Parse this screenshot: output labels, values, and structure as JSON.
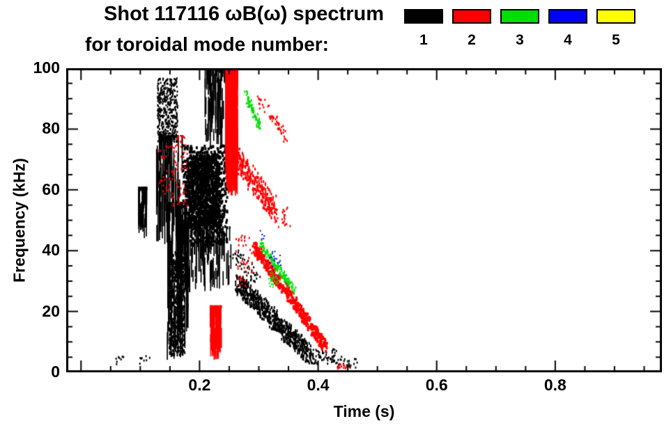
{
  "title": {
    "line1": "Shot 117116 ωB(ω) spectrum",
    "line2": "for toroidal mode number:"
  },
  "legend": {
    "modes": [
      {
        "label": "1",
        "color": "#000000"
      },
      {
        "label": "2",
        "color": "#ff0000"
      },
      {
        "label": "3",
        "color": "#00dd00"
      },
      {
        "label": "4",
        "color": "#0000ff"
      },
      {
        "label": "5",
        "color": "#ffff00"
      }
    ]
  },
  "chart_data": {
    "type": "scatter",
    "title": "Shot 117116 ωB(ω) spectrum for toroidal mode number 1-5",
    "xlabel": "Time (s)",
    "ylabel": "Frequency (kHz)",
    "xlim": [
      -0.025,
      0.98
    ],
    "ylim": [
      0,
      100
    ],
    "grid": false,
    "x_major_ticks": [
      0.0,
      0.2,
      0.4,
      0.6,
      0.8
    ],
    "x_tick_labels": [
      {
        "value": 0.2,
        "label": "0.2"
      },
      {
        "value": 0.4,
        "label": "0.4"
      },
      {
        "value": 0.6,
        "label": "0.6"
      },
      {
        "value": 0.8,
        "label": "0.8"
      }
    ],
    "x_minor_step": 0.05,
    "y_major_ticks": [
      0,
      20,
      40,
      60,
      80,
      100
    ],
    "y_tick_labels": [
      {
        "value": 0,
        "label": "0"
      },
      {
        "value": 20,
        "label": "20"
      },
      {
        "value": 40,
        "label": "40"
      },
      {
        "value": 60,
        "label": "60"
      },
      {
        "value": 80,
        "label": "80"
      },
      {
        "value": 100,
        "label": "100"
      }
    ],
    "y_minor_step": 5,
    "series": [
      {
        "name": "toroidal mode n=1",
        "mode": 1,
        "color": "#000000",
        "clusters": [
          {
            "shape": "blob",
            "t": [
              0.128,
              0.162
            ],
            "f": [
              76,
              97
            ],
            "n": 420,
            "dot": [
              2,
              3
            ]
          },
          {
            "shape": "vband",
            "t": [
              0.126,
              0.17
            ],
            "f": [
              40,
              78
            ],
            "n": 90
          },
          {
            "shape": "blob",
            "t": [
              0.148,
              0.174
            ],
            "f": [
              6,
              40
            ],
            "n": 520,
            "dot": [
              2,
              4
            ]
          },
          {
            "shape": "vband",
            "t": [
              0.143,
              0.18
            ],
            "f": [
              4,
              56
            ],
            "n": 90
          },
          {
            "shape": "vband",
            "t": [
              0.096,
              0.11
            ],
            "f": [
              44,
              61
            ],
            "n": 70
          },
          {
            "shape": "blob",
            "t": [
              0.17,
              0.245
            ],
            "f": [
              42,
              75
            ],
            "n": 700,
            "dot": [
              3,
              4
            ]
          },
          {
            "shape": "blob",
            "t": [
              0.178,
              0.232
            ],
            "f": [
              48,
              72
            ],
            "n": 800,
            "dot": [
              3,
              5
            ]
          },
          {
            "shape": "vband",
            "t": [
              0.172,
              0.252
            ],
            "f": [
              26,
              48
            ],
            "n": 120
          },
          {
            "shape": "vband",
            "t": [
              0.208,
              0.252
            ],
            "f": [
              74,
              100
            ],
            "n": 110
          },
          {
            "shape": "diag",
            "t": [
              0.262,
              0.385
            ],
            "f": [
              30,
              6
            ],
            "n": 700,
            "jt": 0.012,
            "jf": 6,
            "dot": [
              2,
              4
            ]
          },
          {
            "shape": "blob",
            "t": [
              0.38,
              0.43
            ],
            "f": [
              3,
              8
            ],
            "n": 70,
            "dot": [
              2,
              3
            ]
          },
          {
            "shape": "blob",
            "t": [
              0.43,
              0.465
            ],
            "f": [
              1.5,
              5.5
            ],
            "n": 25,
            "dot": [
              2,
              3
            ]
          },
          {
            "shape": "blob",
            "t": [
              0.058,
              0.075
            ],
            "f": [
              3,
              6
            ],
            "n": 8,
            "dot": [
              2,
              3
            ]
          },
          {
            "shape": "blob",
            "t": [
              0.098,
              0.115
            ],
            "f": [
              3,
              6
            ],
            "n": 8,
            "dot": [
              2,
              3
            ]
          },
          {
            "shape": "diag",
            "t": [
              0.255,
              0.3
            ],
            "f": [
              40,
              30
            ],
            "n": 50,
            "jt": 0.01,
            "jf": 5,
            "dot": [
              2,
              3
            ]
          }
        ]
      },
      {
        "name": "toroidal mode n=2",
        "mode": 2,
        "color": "#ff0000",
        "clusters": [
          {
            "shape": "vband",
            "t": [
              0.243,
              0.263
            ],
            "f": [
              58,
              100
            ],
            "n": 380
          },
          {
            "shape": "diag",
            "t": [
              0.258,
              0.325
            ],
            "f": [
              72,
              54
            ],
            "n": 300,
            "jt": 0.012,
            "jf": 8,
            "dot": [
              2,
              4
            ]
          },
          {
            "shape": "diag",
            "t": [
              0.29,
              0.41
            ],
            "f": [
              42,
              9
            ],
            "n": 420,
            "jt": 0.007,
            "jf": 4,
            "dot": [
              3,
              4
            ]
          },
          {
            "shape": "vband",
            "t": [
              0.217,
              0.236
            ],
            "f": [
              4,
              22
            ],
            "n": 130
          },
          {
            "shape": "blob",
            "t": [
              0.152,
              0.178
            ],
            "f": [
              55,
              78
            ],
            "n": 60,
            "dot": [
              2,
              3
            ]
          },
          {
            "shape": "blob",
            "t": [
              0.13,
              0.15
            ],
            "f": [
              58,
              75
            ],
            "n": 25,
            "dot": [
              2,
              3
            ]
          },
          {
            "shape": "diag",
            "t": [
              0.298,
              0.345
            ],
            "f": [
              90,
              78
            ],
            "n": 55,
            "jt": 0.008,
            "jf": 4,
            "dot": [
              2,
              3
            ]
          },
          {
            "shape": "blob",
            "t": [
              0.432,
              0.448
            ],
            "f": [
              1.5,
              4
            ],
            "n": 12,
            "dot": [
              2,
              3
            ]
          },
          {
            "shape": "blob",
            "t": [
              0.258,
              0.29
            ],
            "f": [
              28,
              46
            ],
            "n": 40,
            "dot": [
              2,
              3
            ]
          },
          {
            "shape": "blob",
            "t": [
              0.325,
              0.355
            ],
            "f": [
              48,
              55
            ],
            "n": 25,
            "dot": [
              2,
              3
            ]
          }
        ]
      },
      {
        "name": "toroidal mode n=3",
        "mode": 3,
        "color": "#00dd00",
        "clusters": [
          {
            "shape": "diag",
            "t": [
              0.277,
              0.302
            ],
            "f": [
              92,
              80
            ],
            "n": 80,
            "jt": 0.006,
            "jf": 3,
            "dot": [
              2,
              3
            ]
          },
          {
            "shape": "diag",
            "t": [
              0.3,
              0.36
            ],
            "f": [
              43,
              27
            ],
            "n": 140,
            "jt": 0.006,
            "jf": 2.5,
            "dot": [
              2,
              3
            ]
          },
          {
            "shape": "blob",
            "t": [
              0.315,
              0.335
            ],
            "f": [
              28,
              33
            ],
            "n": 30,
            "dot": [
              2,
              2
            ]
          }
        ]
      },
      {
        "name": "toroidal mode n=4",
        "mode": 4,
        "color": "#0000ff",
        "clusters": [
          {
            "shape": "blob",
            "t": [
              0.316,
              0.336
            ],
            "f": [
              35,
              40
            ],
            "n": 16,
            "dot": [
              2,
              2
            ]
          },
          {
            "shape": "blob",
            "t": [
              0.3,
              0.309
            ],
            "f": [
              44,
              47
            ],
            "n": 5,
            "dot": [
              2,
              2
            ]
          }
        ]
      },
      {
        "name": "toroidal mode n=5",
        "mode": 5,
        "color": "#ffff00",
        "clusters": []
      }
    ]
  }
}
